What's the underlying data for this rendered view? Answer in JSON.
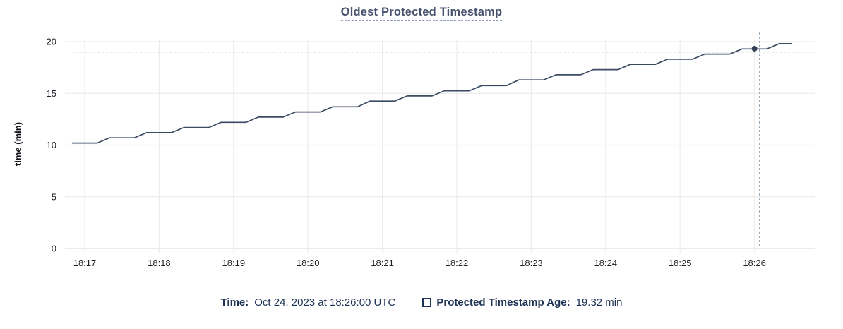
{
  "title": "Oldest Protected Timestamp",
  "tooltip": {
    "time_label": "Time:",
    "time_value": "Oct 24, 2023 at 18:26:00 UTC",
    "series_label": "Protected Timestamp Age:",
    "series_value": "19.32 min"
  },
  "colors": {
    "line": "#3b4a63",
    "dot": "#35425a",
    "title": "#47536e",
    "title_underline": "#8e9cb9",
    "legend_text": "#1d3254",
    "grid": "#ececec",
    "axis_line": "#e4e4e4",
    "axis_text": "#1d2026",
    "crosshair": "#98abb8"
  },
  "chart_data": {
    "type": "line",
    "title": "Oldest Protected Timestamp",
    "xlabel": "",
    "ylabel": "time (min)",
    "ylim": [
      0,
      20
    ],
    "y_ticks": [
      0,
      5,
      10,
      15,
      20
    ],
    "x_ticks": [
      "18:17",
      "18:18",
      "18:19",
      "18:20",
      "18:21",
      "18:22",
      "18:23",
      "18:24",
      "18:25",
      "18:26"
    ],
    "grid": true,
    "legend_position": "bottom",
    "series": [
      {
        "name": "Protected Timestamp Age",
        "unit": "min",
        "points": [
          [
            "18:16:50",
            10.2
          ],
          [
            "18:17:10",
            10.2
          ],
          [
            "18:17:20",
            10.7
          ],
          [
            "18:17:40",
            10.7
          ],
          [
            "18:17:50",
            11.2
          ],
          [
            "18:18:10",
            11.2
          ],
          [
            "18:18:20",
            11.7
          ],
          [
            "18:18:40",
            11.7
          ],
          [
            "18:18:50",
            12.2
          ],
          [
            "18:19:10",
            12.2
          ],
          [
            "18:19:20",
            12.7
          ],
          [
            "18:19:40",
            12.7
          ],
          [
            "18:19:50",
            13.2
          ],
          [
            "18:20:10",
            13.2
          ],
          [
            "18:20:20",
            13.7
          ],
          [
            "18:20:40",
            13.7
          ],
          [
            "18:20:50",
            14.25
          ],
          [
            "18:21:10",
            14.25
          ],
          [
            "18:21:20",
            14.75
          ],
          [
            "18:21:40",
            14.75
          ],
          [
            "18:21:50",
            15.25
          ],
          [
            "18:22:10",
            15.25
          ],
          [
            "18:22:20",
            15.75
          ],
          [
            "18:22:40",
            15.75
          ],
          [
            "18:22:50",
            16.3
          ],
          [
            "18:23:10",
            16.3
          ],
          [
            "18:23:20",
            16.8
          ],
          [
            "18:23:40",
            16.8
          ],
          [
            "18:23:50",
            17.3
          ],
          [
            "18:24:10",
            17.3
          ],
          [
            "18:24:20",
            17.8
          ],
          [
            "18:24:40",
            17.8
          ],
          [
            "18:24:50",
            18.3
          ],
          [
            "18:25:10",
            18.3
          ],
          [
            "18:25:20",
            18.8
          ],
          [
            "18:25:40",
            18.8
          ],
          [
            "18:25:50",
            19.3
          ],
          [
            "18:26:10",
            19.3
          ],
          [
            "18:26:20",
            19.8
          ],
          [
            "18:26:30",
            19.8
          ]
        ]
      }
    ],
    "hover": {
      "crosshair_time": "18:26:04",
      "crosshair_value": 19.0,
      "highlight_point_time": "18:26:00",
      "highlight_point_value": 19.32
    }
  }
}
